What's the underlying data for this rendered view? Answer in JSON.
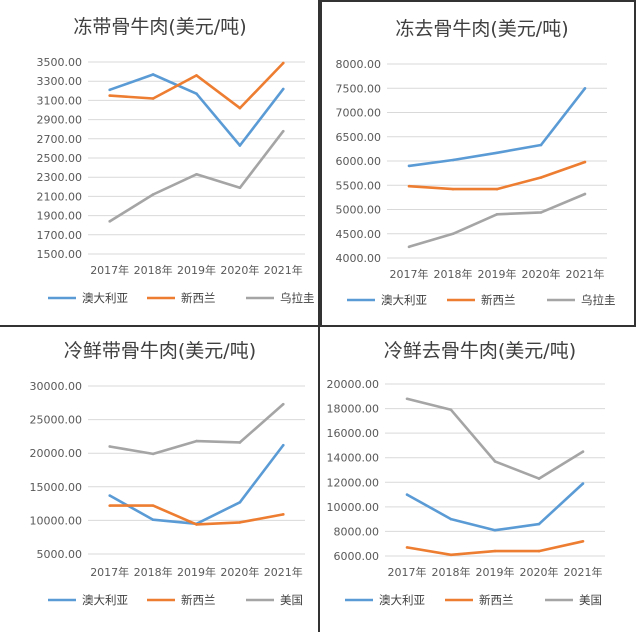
{
  "colors": {
    "series1": "#5b9bd5",
    "series2": "#ed7d31",
    "series3": "#a5a5a5"
  },
  "chart_data": [
    {
      "type": "line",
      "title": "冻带骨牛肉(美元/吨)",
      "categories": [
        "2017年",
        "2018年",
        "2019年",
        "2020年",
        "2021年"
      ],
      "ylim": [
        1500,
        3500
      ],
      "yticks": [
        "3500.00",
        "3300.00",
        "3100.00",
        "2900.00",
        "2700.00",
        "2500.00",
        "2300.00",
        "2100.00",
        "1900.00",
        "1700.00",
        "1500.00"
      ],
      "grid": true,
      "legend": "bottom",
      "series": [
        {
          "name": "澳大利亚",
          "values": [
            3210,
            3370,
            3170,
            2630,
            3220
          ]
        },
        {
          "name": "新西兰",
          "values": [
            3150,
            3120,
            3360,
            3020,
            3490
          ]
        },
        {
          "name": "乌拉圭",
          "values": [
            1840,
            2120,
            2330,
            2190,
            2780
          ]
        }
      ]
    },
    {
      "type": "line",
      "title": "冻去骨牛肉(美元/吨)",
      "categories": [
        "2017年",
        "2018年",
        "2019年",
        "2020年",
        "2021年"
      ],
      "ylim": [
        4000,
        8000
      ],
      "yticks": [
        "8000.00",
        "7500.00",
        "7000.00",
        "6500.00",
        "6000.00",
        "5500.00",
        "5000.00",
        "4500.00",
        "4000.00"
      ],
      "grid": true,
      "legend": "bottom",
      "series": [
        {
          "name": "澳大利亚",
          "values": [
            5900,
            6020,
            6170,
            6330,
            7500
          ]
        },
        {
          "name": "新西兰",
          "values": [
            5480,
            5420,
            5420,
            5660,
            5980
          ]
        },
        {
          "name": "乌拉圭",
          "values": [
            4230,
            4500,
            4900,
            4940,
            5320
          ]
        }
      ]
    },
    {
      "type": "line",
      "title": "冷鲜带骨牛肉(美元/吨)",
      "categories": [
        "2017年",
        "2018年",
        "2019年",
        "2020年",
        "2021年"
      ],
      "ylim": [
        5000,
        30000
      ],
      "yticks": [
        "30000.00",
        "25000.00",
        "20000.00",
        "15000.00",
        "10000.00",
        "5000.00"
      ],
      "grid": true,
      "legend": "bottom",
      "series": [
        {
          "name": "澳大利亚",
          "values": [
            13700,
            10100,
            9500,
            12700,
            21200
          ]
        },
        {
          "name": "新西兰",
          "values": [
            12200,
            12200,
            9400,
            9700,
            10900
          ]
        },
        {
          "name": "美国",
          "values": [
            21000,
            19900,
            21800,
            21600,
            27300
          ]
        }
      ]
    },
    {
      "type": "line",
      "title": "冷鲜去骨牛肉(美元/吨)",
      "categories": [
        "2017年",
        "2018年",
        "2019年",
        "2020年",
        "2021年"
      ],
      "ylim": [
        6000,
        20000
      ],
      "yticks": [
        "20000.00",
        "18000.00",
        "16000.00",
        "14000.00",
        "12000.00",
        "10000.00",
        "8000.00",
        "6000.00"
      ],
      "grid": true,
      "legend": "bottom",
      "series": [
        {
          "name": "澳大利亚",
          "values": [
            11000,
            9000,
            8100,
            8600,
            11900
          ]
        },
        {
          "name": "新西兰",
          "values": [
            6700,
            6100,
            6400,
            6400,
            7200
          ]
        },
        {
          "name": "美国",
          "values": [
            18800,
            17900,
            13700,
            12300,
            14500
          ]
        }
      ]
    }
  ]
}
